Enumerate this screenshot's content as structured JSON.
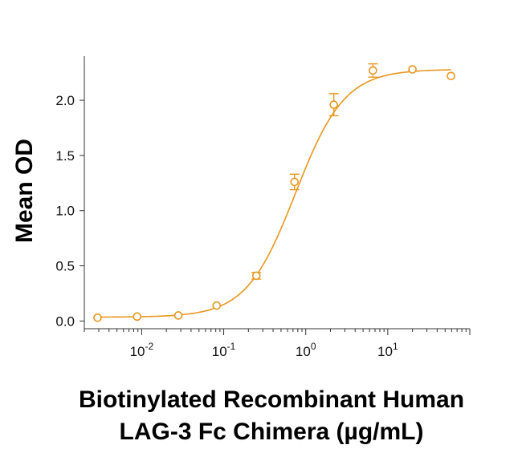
{
  "chart_data": {
    "type": "scatter",
    "title": "",
    "xlabel_lines": [
      "Biotinylated Recombinant Human",
      "LAG-3 Fc Chimera (µg/mL)"
    ],
    "ylabel": "Mean OD",
    "x_scale": "log",
    "xlim": [
      0.002,
      100
    ],
    "ylim": [
      -0.07,
      2.4
    ],
    "grid": false,
    "legend": "none",
    "color": "#E8961E",
    "y_ticks": [
      {
        "value": 0.0,
        "label": "0.0"
      },
      {
        "value": 0.5,
        "label": "0.5"
      },
      {
        "value": 1.0,
        "label": "1.0"
      },
      {
        "value": 1.5,
        "label": "1.5"
      },
      {
        "value": 2.0,
        "label": "2.0"
      }
    ],
    "x_ticks": [
      {
        "value": 0.01,
        "base": "10",
        "exp": "-2"
      },
      {
        "value": 0.1,
        "base": "10",
        "exp": "-1"
      },
      {
        "value": 1,
        "base": "10",
        "exp": "0"
      },
      {
        "value": 10,
        "base": "10",
        "exp": "1"
      }
    ],
    "points": [
      {
        "x": 0.0029,
        "y": 0.03,
        "err": 0.0
      },
      {
        "x": 0.0088,
        "y": 0.04,
        "err": 0.0
      },
      {
        "x": 0.028,
        "y": 0.05,
        "err": 0.0
      },
      {
        "x": 0.082,
        "y": 0.14,
        "err": 0.0
      },
      {
        "x": 0.25,
        "y": 0.41,
        "err": 0.03
      },
      {
        "x": 0.73,
        "y": 1.26,
        "err": 0.07
      },
      {
        "x": 2.2,
        "y": 1.96,
        "err": 0.1
      },
      {
        "x": 6.6,
        "y": 2.27,
        "err": 0.06
      },
      {
        "x": 20,
        "y": 2.28,
        "err": 0.0
      },
      {
        "x": 59,
        "y": 2.22,
        "err": 0.0
      }
    ],
    "fit_curve": {
      "model": "4PL",
      "bottom": 0.035,
      "top": 2.28,
      "ec50": 0.75,
      "hill": 1.45
    }
  }
}
